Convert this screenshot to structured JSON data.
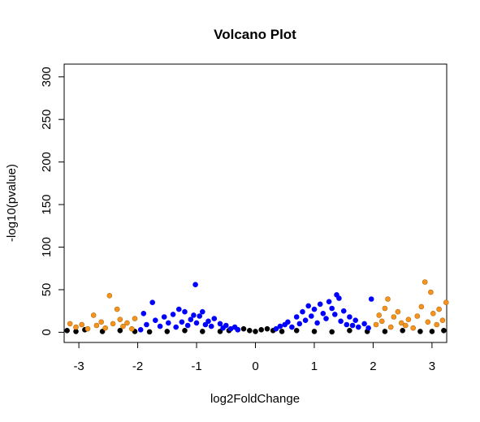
{
  "chart_data": {
    "type": "scatter",
    "title": "Volcano Plot",
    "xlabel": "log2FoldChange",
    "ylabel": "-log10(pvalue)",
    "xlim": [
      -3.25,
      3.25
    ],
    "ylim": [
      -12,
      315
    ],
    "x_ticks": [
      "-3",
      "-2",
      "-1",
      "0",
      "1",
      "2",
      "3"
    ],
    "x_tick_values": [
      -3,
      -2,
      -1,
      0,
      1,
      2,
      3
    ],
    "y_ticks": [
      "0",
      "50",
      "100",
      "150",
      "200",
      "250",
      "300"
    ],
    "y_tick_values": [
      0,
      50,
      100,
      150,
      200,
      250,
      300
    ],
    "grid": false,
    "legend": "none",
    "colors": {
      "nonsignificant": "#000000",
      "significant": "#0000ff",
      "large_fold_change": "#f7941d"
    },
    "series": [
      {
        "color_key": "nonsignificant",
        "points": [
          [
            -3.2,
            2
          ],
          [
            -3.05,
            1
          ],
          [
            -2.9,
            3
          ],
          [
            -2.6,
            1
          ],
          [
            -2.3,
            2
          ],
          [
            -2.05,
            1
          ],
          [
            -1.8,
            0.5
          ],
          [
            -1.5,
            1
          ],
          [
            -1.2,
            2
          ],
          [
            -0.9,
            1
          ],
          [
            -0.6,
            1
          ],
          [
            -0.45,
            2
          ],
          [
            -0.3,
            3
          ],
          [
            -0.2,
            4
          ],
          [
            -0.1,
            2
          ],
          [
            0,
            1
          ],
          [
            0.1,
            3
          ],
          [
            0.2,
            4
          ],
          [
            0.3,
            2
          ],
          [
            0.45,
            1
          ],
          [
            0.7,
            2
          ],
          [
            1.0,
            1
          ],
          [
            1.3,
            0.5
          ],
          [
            1.6,
            2
          ],
          [
            1.9,
            1
          ],
          [
            2.2,
            1
          ],
          [
            2.5,
            2
          ],
          [
            2.8,
            1
          ],
          [
            3.0,
            1
          ],
          [
            3.2,
            2
          ]
        ]
      },
      {
        "color_key": "significant",
        "points": [
          [
            -1.95,
            3
          ],
          [
            -1.9,
            22
          ],
          [
            -1.85,
            9
          ],
          [
            -1.75,
            35
          ],
          [
            -1.7,
            14
          ],
          [
            -1.62,
            7
          ],
          [
            -1.55,
            18
          ],
          [
            -1.48,
            11
          ],
          [
            -1.4,
            21
          ],
          [
            -1.35,
            6
          ],
          [
            -1.3,
            27
          ],
          [
            -1.25,
            12
          ],
          [
            -1.2,
            24
          ],
          [
            -1.15,
            8
          ],
          [
            -1.1,
            15
          ],
          [
            -1.05,
            20
          ],
          [
            -1.02,
            56
          ],
          [
            -1.0,
            11
          ],
          [
            -0.95,
            19
          ],
          [
            -0.9,
            24
          ],
          [
            -0.85,
            9
          ],
          [
            -0.8,
            13
          ],
          [
            -0.75,
            7
          ],
          [
            -0.7,
            16
          ],
          [
            -0.6,
            10
          ],
          [
            -0.55,
            5
          ],
          [
            -0.5,
            8
          ],
          [
            -0.42,
            4
          ],
          [
            -0.35,
            6
          ],
          [
            -0.3,
            3
          ],
          [
            0.35,
            4
          ],
          [
            0.42,
            7
          ],
          [
            0.5,
            9
          ],
          [
            0.55,
            12
          ],
          [
            0.62,
            6
          ],
          [
            0.7,
            18
          ],
          [
            0.75,
            10
          ],
          [
            0.8,
            24
          ],
          [
            0.85,
            14
          ],
          [
            0.9,
            31
          ],
          [
            0.95,
            19
          ],
          [
            1.0,
            27
          ],
          [
            1.05,
            11
          ],
          [
            1.1,
            33
          ],
          [
            1.15,
            22
          ],
          [
            1.2,
            16
          ],
          [
            1.25,
            36
          ],
          [
            1.3,
            28
          ],
          [
            1.35,
            21
          ],
          [
            1.38,
            44
          ],
          [
            1.42,
            40
          ],
          [
            1.45,
            13
          ],
          [
            1.5,
            25
          ],
          [
            1.55,
            9
          ],
          [
            1.6,
            18
          ],
          [
            1.65,
            8
          ],
          [
            1.7,
            14
          ],
          [
            1.75,
            6
          ],
          [
            1.85,
            10
          ],
          [
            1.92,
            5
          ],
          [
            1.97,
            39
          ]
        ]
      },
      {
        "color_key": "large_fold_change",
        "points": [
          [
            -3.15,
            10
          ],
          [
            -3.05,
            6
          ],
          [
            -2.95,
            9
          ],
          [
            -2.85,
            4
          ],
          [
            -2.75,
            20
          ],
          [
            -2.7,
            8
          ],
          [
            -2.62,
            12
          ],
          [
            -2.55,
            5
          ],
          [
            -2.48,
            43
          ],
          [
            -2.42,
            10
          ],
          [
            -2.35,
            27
          ],
          [
            -2.3,
            15
          ],
          [
            -2.25,
            7
          ],
          [
            -2.18,
            11
          ],
          [
            -2.1,
            4
          ],
          [
            -2.05,
            16
          ],
          [
            2.05,
            9
          ],
          [
            2.1,
            20
          ],
          [
            2.15,
            13
          ],
          [
            2.2,
            28
          ],
          [
            2.25,
            39
          ],
          [
            2.3,
            6
          ],
          [
            2.35,
            18
          ],
          [
            2.42,
            24
          ],
          [
            2.48,
            11
          ],
          [
            2.55,
            8
          ],
          [
            2.6,
            15
          ],
          [
            2.68,
            5
          ],
          [
            2.75,
            19
          ],
          [
            2.82,
            30
          ],
          [
            2.88,
            59
          ],
          [
            2.93,
            12
          ],
          [
            2.98,
            47
          ],
          [
            3.02,
            22
          ],
          [
            3.08,
            9
          ],
          [
            3.12,
            27
          ],
          [
            3.18,
            14
          ],
          [
            3.24,
            35
          ]
        ]
      }
    ]
  }
}
